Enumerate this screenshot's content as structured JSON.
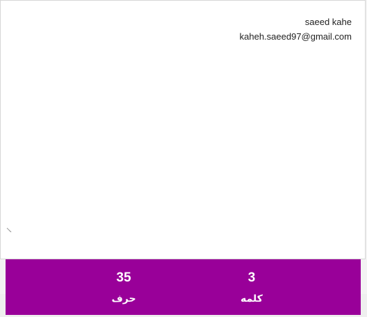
{
  "editor": {
    "lines": [
      "saeed kahe",
      "kaheh.saeed97@gmail.com"
    ]
  },
  "stats": {
    "characters": {
      "value": "35",
      "label": "حرف"
    },
    "words": {
      "value": "3",
      "label": "کلمه"
    }
  },
  "colors": {
    "accent": "#990099",
    "background": "#ffffff"
  }
}
